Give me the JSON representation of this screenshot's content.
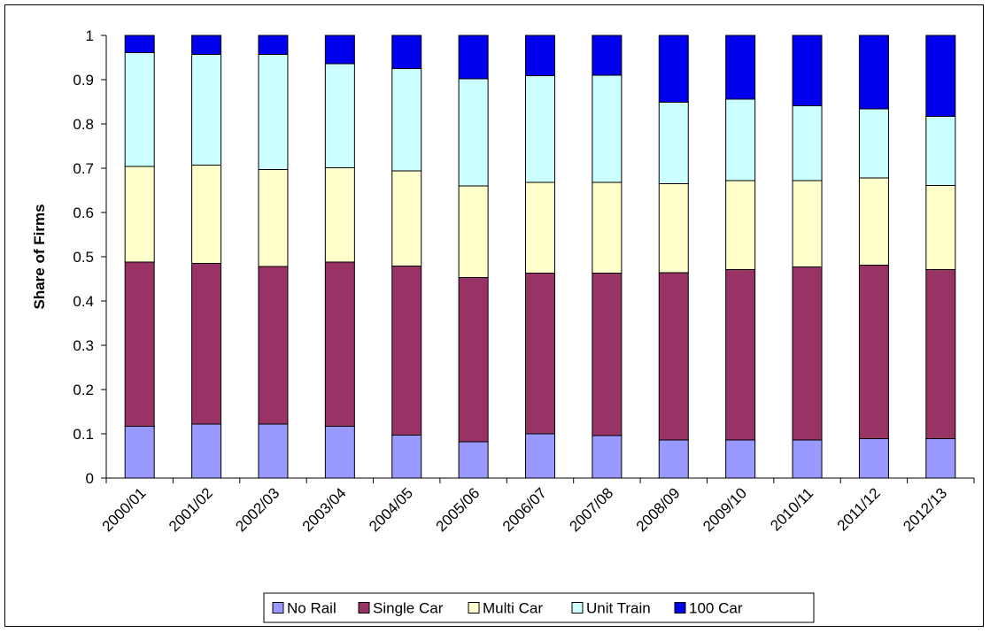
{
  "chart_data": {
    "type": "bar",
    "stacked": true,
    "title": "",
    "xlabel": "",
    "ylabel": "Share of Firms",
    "ylim": [
      0,
      1
    ],
    "yticks": [
      "0",
      "0.1",
      "0.2",
      "0.3",
      "0.4",
      "0.5",
      "0.6",
      "0.7",
      "0.8",
      "0.9",
      "1"
    ],
    "grid": false,
    "legend": "bottom",
    "categories": [
      "2000/01",
      "2001/02",
      "2002/03",
      "2003/04",
      "2004/05",
      "2005/06",
      "2006/07",
      "2007/08",
      "2008/09",
      "2009/10",
      "2010/11",
      "2011/12",
      "2012/13"
    ],
    "series": [
      {
        "name": "No Rail",
        "color": "#9999ff",
        "values": [
          0.117,
          0.122,
          0.122,
          0.117,
          0.097,
          0.082,
          0.1,
          0.096,
          0.086,
          0.086,
          0.086,
          0.089,
          0.089
        ]
      },
      {
        "name": "Single Car",
        "color": "#993366",
        "values": [
          0.371,
          0.363,
          0.356,
          0.371,
          0.382,
          0.371,
          0.363,
          0.367,
          0.378,
          0.385,
          0.391,
          0.392,
          0.382
        ]
      },
      {
        "name": "Multi Car",
        "color": "#ffffcc",
        "values": [
          0.216,
          0.222,
          0.219,
          0.213,
          0.215,
          0.207,
          0.205,
          0.205,
          0.201,
          0.201,
          0.195,
          0.197,
          0.19
        ]
      },
      {
        "name": "Unit Train",
        "color": "#ccffff",
        "values": [
          0.257,
          0.25,
          0.26,
          0.235,
          0.231,
          0.242,
          0.241,
          0.242,
          0.184,
          0.184,
          0.169,
          0.156,
          0.156
        ]
      },
      {
        "name": "100 Car",
        "color": "#0000ee",
        "values": [
          0.039,
          0.043,
          0.043,
          0.064,
          0.075,
          0.098,
          0.091,
          0.09,
          0.151,
          0.144,
          0.159,
          0.166,
          0.183
        ]
      }
    ]
  }
}
